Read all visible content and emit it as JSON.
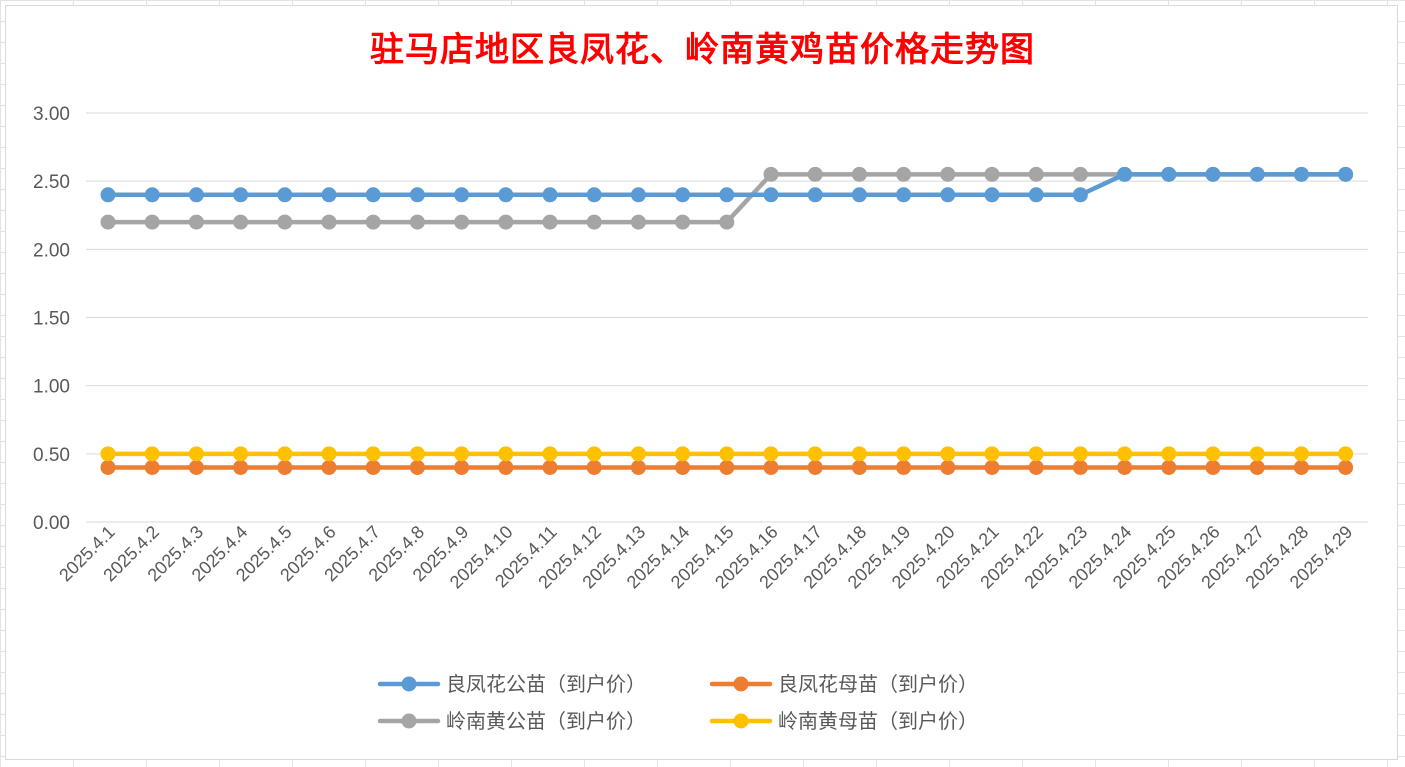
{
  "chart_data": {
    "type": "line",
    "title": "驻马店地区良凤花、岭南黄鸡苗价格走势图",
    "xlabel": "",
    "ylabel": "",
    "ylim": [
      0,
      3
    ],
    "yticks": [
      "0.00",
      "0.50",
      "1.00",
      "1.50",
      "2.00",
      "2.50",
      "3.00"
    ],
    "grid": true,
    "legend_position": "bottom",
    "categories": [
      "2025.4.1",
      "2025.4.2",
      "2025.4.3",
      "2025.4.4",
      "2025.4.5",
      "2025.4.6",
      "2025.4.7",
      "2025.4.8",
      "2025.4.9",
      "2025.4.10",
      "2025.4.11",
      "2025.4.12",
      "2025.4.13",
      "2025.4.14",
      "2025.4.15",
      "2025.4.16",
      "2025.4.17",
      "2025.4.18",
      "2025.4.19",
      "2025.4.20",
      "2025.4.21",
      "2025.4.22",
      "2025.4.23",
      "2025.4.24",
      "2025.4.25",
      "2025.4.26",
      "2025.4.27",
      "2025.4.28",
      "2025.4.29"
    ],
    "series": [
      {
        "name": "良凤花公苗（到户价）",
        "color": "#5b9bd5",
        "values": [
          2.4,
          2.4,
          2.4,
          2.4,
          2.4,
          2.4,
          2.4,
          2.4,
          2.4,
          2.4,
          2.4,
          2.4,
          2.4,
          2.4,
          2.4,
          2.4,
          2.4,
          2.4,
          2.4,
          2.4,
          2.4,
          2.4,
          2.4,
          2.55,
          2.55,
          2.55,
          2.55,
          2.55,
          2.55
        ]
      },
      {
        "name": "良凤花母苗（到户价）",
        "color": "#ed7d31",
        "values": [
          0.4,
          0.4,
          0.4,
          0.4,
          0.4,
          0.4,
          0.4,
          0.4,
          0.4,
          0.4,
          0.4,
          0.4,
          0.4,
          0.4,
          0.4,
          0.4,
          0.4,
          0.4,
          0.4,
          0.4,
          0.4,
          0.4,
          0.4,
          0.4,
          0.4,
          0.4,
          0.4,
          0.4,
          0.4
        ]
      },
      {
        "name": "岭南黄公苗（到户价）",
        "color": "#a5a5a5",
        "values": [
          2.2,
          2.2,
          2.2,
          2.2,
          2.2,
          2.2,
          2.2,
          2.2,
          2.2,
          2.2,
          2.2,
          2.2,
          2.2,
          2.2,
          2.2,
          2.55,
          2.55,
          2.55,
          2.55,
          2.55,
          2.55,
          2.55,
          2.55,
          2.55,
          2.55,
          2.55,
          2.55,
          2.55,
          2.55
        ]
      },
      {
        "name": "岭南黄母苗（到户价）",
        "color": "#ffc000",
        "values": [
          0.5,
          0.5,
          0.5,
          0.5,
          0.5,
          0.5,
          0.5,
          0.5,
          0.5,
          0.5,
          0.5,
          0.5,
          0.5,
          0.5,
          0.5,
          0.5,
          0.5,
          0.5,
          0.5,
          0.5,
          0.5,
          0.5,
          0.5,
          0.5,
          0.5,
          0.5,
          0.5,
          0.5,
          0.5
        ]
      }
    ],
    "draw_order": [
      2,
      0,
      1,
      3
    ]
  }
}
